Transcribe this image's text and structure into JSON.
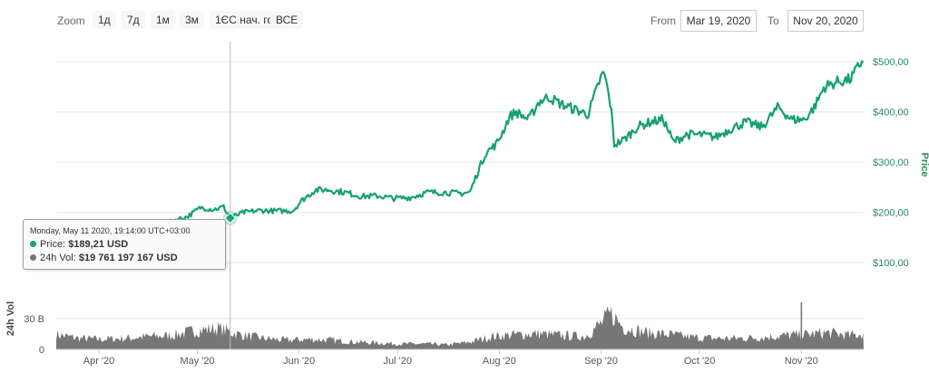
{
  "toolbar": {
    "zoom_label": "Zoom",
    "zoom_buttons": [
      "1д",
      "7д",
      "1м",
      "3м",
      "1ЄС нач. го.",
      "ВСЕ"
    ],
    "from_label": "From",
    "from_value": "Mar 19, 2020",
    "to_label": "To",
    "to_value": "Nov 20, 2020"
  },
  "tooltip": {
    "date": "Monday, May 11 2020, 19:14:00 UTC+03:00",
    "price_label": "Price:",
    "price_value": "$189,21 USD",
    "vol_label": "24h Vol:",
    "vol_value": "$19 761 197 167 USD"
  },
  "colors": {
    "price_line": "#16a073",
    "volume": "#777777",
    "axis_green": "#2b8a5a"
  },
  "chart_data": {
    "type": "line",
    "price_axis": {
      "title": "Price",
      "ticks": [
        "$100,00",
        "$200,00",
        "$300,00",
        "$400,00",
        "$500,00"
      ],
      "tick_values": [
        100,
        200,
        300,
        400,
        500
      ],
      "range": [
        50,
        540
      ]
    },
    "volume_axis": {
      "title": "24h Vol",
      "ticks": [
        "0",
        "30 B"
      ],
      "tick_values": [
        0,
        30
      ],
      "range": [
        0,
        60
      ]
    },
    "x_axis": {
      "ticks": [
        "Apr '20",
        "May '20",
        "Jun '20",
        "Jul '20",
        "Aug '20",
        "Sep '20",
        "Oct '20",
        "Nov '20"
      ],
      "tick_dates": [
        "2020-04-01",
        "2020-05-01",
        "2020-06-01",
        "2020-07-01",
        "2020-08-01",
        "2020-09-01",
        "2020-10-01",
        "2020-11-01"
      ],
      "range": [
        "2020-03-19",
        "2020-11-20"
      ]
    },
    "crosshair_date": "2020-05-11",
    "price_series": {
      "name": "Price",
      "points": [
        [
          "2020-03-19",
          128
        ],
        [
          "2020-03-23",
          132
        ],
        [
          "2020-03-27",
          135
        ],
        [
          "2020-03-31",
          134
        ],
        [
          "2020-04-04",
          143
        ],
        [
          "2020-04-08",
          160
        ],
        [
          "2020-04-12",
          158
        ],
        [
          "2020-04-16",
          170
        ],
        [
          "2020-04-20",
          172
        ],
        [
          "2020-04-24",
          185
        ],
        [
          "2020-04-28",
          192
        ],
        [
          "2020-05-02",
          210
        ],
        [
          "2020-05-06",
          206
        ],
        [
          "2020-05-09",
          211
        ],
        [
          "2020-05-11",
          189
        ],
        [
          "2020-05-15",
          200
        ],
        [
          "2020-05-20",
          204
        ],
        [
          "2020-05-25",
          203
        ],
        [
          "2020-05-30",
          203
        ],
        [
          "2020-06-02",
          225
        ],
        [
          "2020-06-06",
          245
        ],
        [
          "2020-06-10",
          245
        ],
        [
          "2020-06-15",
          240
        ],
        [
          "2020-06-20",
          232
        ],
        [
          "2020-06-25",
          233
        ],
        [
          "2020-06-30",
          228
        ],
        [
          "2020-07-05",
          230
        ],
        [
          "2020-07-10",
          240
        ],
        [
          "2020-07-15",
          240
        ],
        [
          "2020-07-20",
          238
        ],
        [
          "2020-07-23",
          240
        ],
        [
          "2020-07-26",
          290
        ],
        [
          "2020-07-28",
          320
        ],
        [
          "2020-07-31",
          335
        ],
        [
          "2020-08-02",
          360
        ],
        [
          "2020-08-04",
          390
        ],
        [
          "2020-08-06",
          400
        ],
        [
          "2020-08-10",
          385
        ],
        [
          "2020-08-13",
          420
        ],
        [
          "2020-08-16",
          430
        ],
        [
          "2020-08-20",
          415
        ],
        [
          "2020-08-24",
          405
        ],
        [
          "2020-08-28",
          395
        ],
        [
          "2020-09-01",
          470
        ],
        [
          "2020-09-02",
          477
        ],
        [
          "2020-09-04",
          410
        ],
        [
          "2020-09-05",
          335
        ],
        [
          "2020-09-08",
          345
        ],
        [
          "2020-09-12",
          370
        ],
        [
          "2020-09-16",
          380
        ],
        [
          "2020-09-20",
          385
        ],
        [
          "2020-09-23",
          340
        ],
        [
          "2020-09-27",
          355
        ],
        [
          "2020-10-01",
          355
        ],
        [
          "2020-10-06",
          350
        ],
        [
          "2020-10-10",
          365
        ],
        [
          "2020-10-15",
          380
        ],
        [
          "2020-10-20",
          370
        ],
        [
          "2020-10-25",
          410
        ],
        [
          "2020-10-29",
          385
        ],
        [
          "2020-11-02",
          385
        ],
        [
          "2020-11-05",
          410
        ],
        [
          "2020-11-08",
          450
        ],
        [
          "2020-11-12",
          460
        ],
        [
          "2020-11-16",
          465
        ],
        [
          "2020-11-20",
          507
        ]
      ]
    },
    "volume_series": {
      "name": "24h Vol",
      "points": [
        [
          "2020-03-19",
          16
        ],
        [
          "2020-03-26",
          12
        ],
        [
          "2020-04-02",
          11
        ],
        [
          "2020-04-09",
          12
        ],
        [
          "2020-04-16",
          14
        ],
        [
          "2020-04-23",
          15
        ],
        [
          "2020-04-30",
          20
        ],
        [
          "2020-05-07",
          23
        ],
        [
          "2020-05-14",
          16
        ],
        [
          "2020-05-21",
          12
        ],
        [
          "2020-05-28",
          10
        ],
        [
          "2020-06-04",
          11
        ],
        [
          "2020-06-11",
          10
        ],
        [
          "2020-06-18",
          8
        ],
        [
          "2020-06-25",
          7
        ],
        [
          "2020-07-02",
          6
        ],
        [
          "2020-07-09",
          6
        ],
        [
          "2020-07-16",
          5
        ],
        [
          "2020-07-23",
          8
        ],
        [
          "2020-07-30",
          14
        ],
        [
          "2020-08-06",
          16
        ],
        [
          "2020-08-13",
          17
        ],
        [
          "2020-08-20",
          15
        ],
        [
          "2020-08-27",
          14
        ],
        [
          "2020-09-01",
          28
        ],
        [
          "2020-09-04",
          38
        ],
        [
          "2020-09-08",
          24
        ],
        [
          "2020-09-15",
          18
        ],
        [
          "2020-09-22",
          16
        ],
        [
          "2020-09-29",
          13
        ],
        [
          "2020-10-06",
          12
        ],
        [
          "2020-10-13",
          12
        ],
        [
          "2020-10-20",
          13
        ],
        [
          "2020-10-27",
          15
        ],
        [
          "2020-11-02",
          16
        ],
        [
          "2020-11-09",
          18
        ],
        [
          "2020-11-16",
          15
        ],
        [
          "2020-11-20",
          17
        ]
      ],
      "spikes": [
        [
          "2020-09-03",
          34
        ],
        [
          "2020-09-05",
          24
        ],
        [
          "2020-11-01",
          46
        ]
      ]
    }
  }
}
